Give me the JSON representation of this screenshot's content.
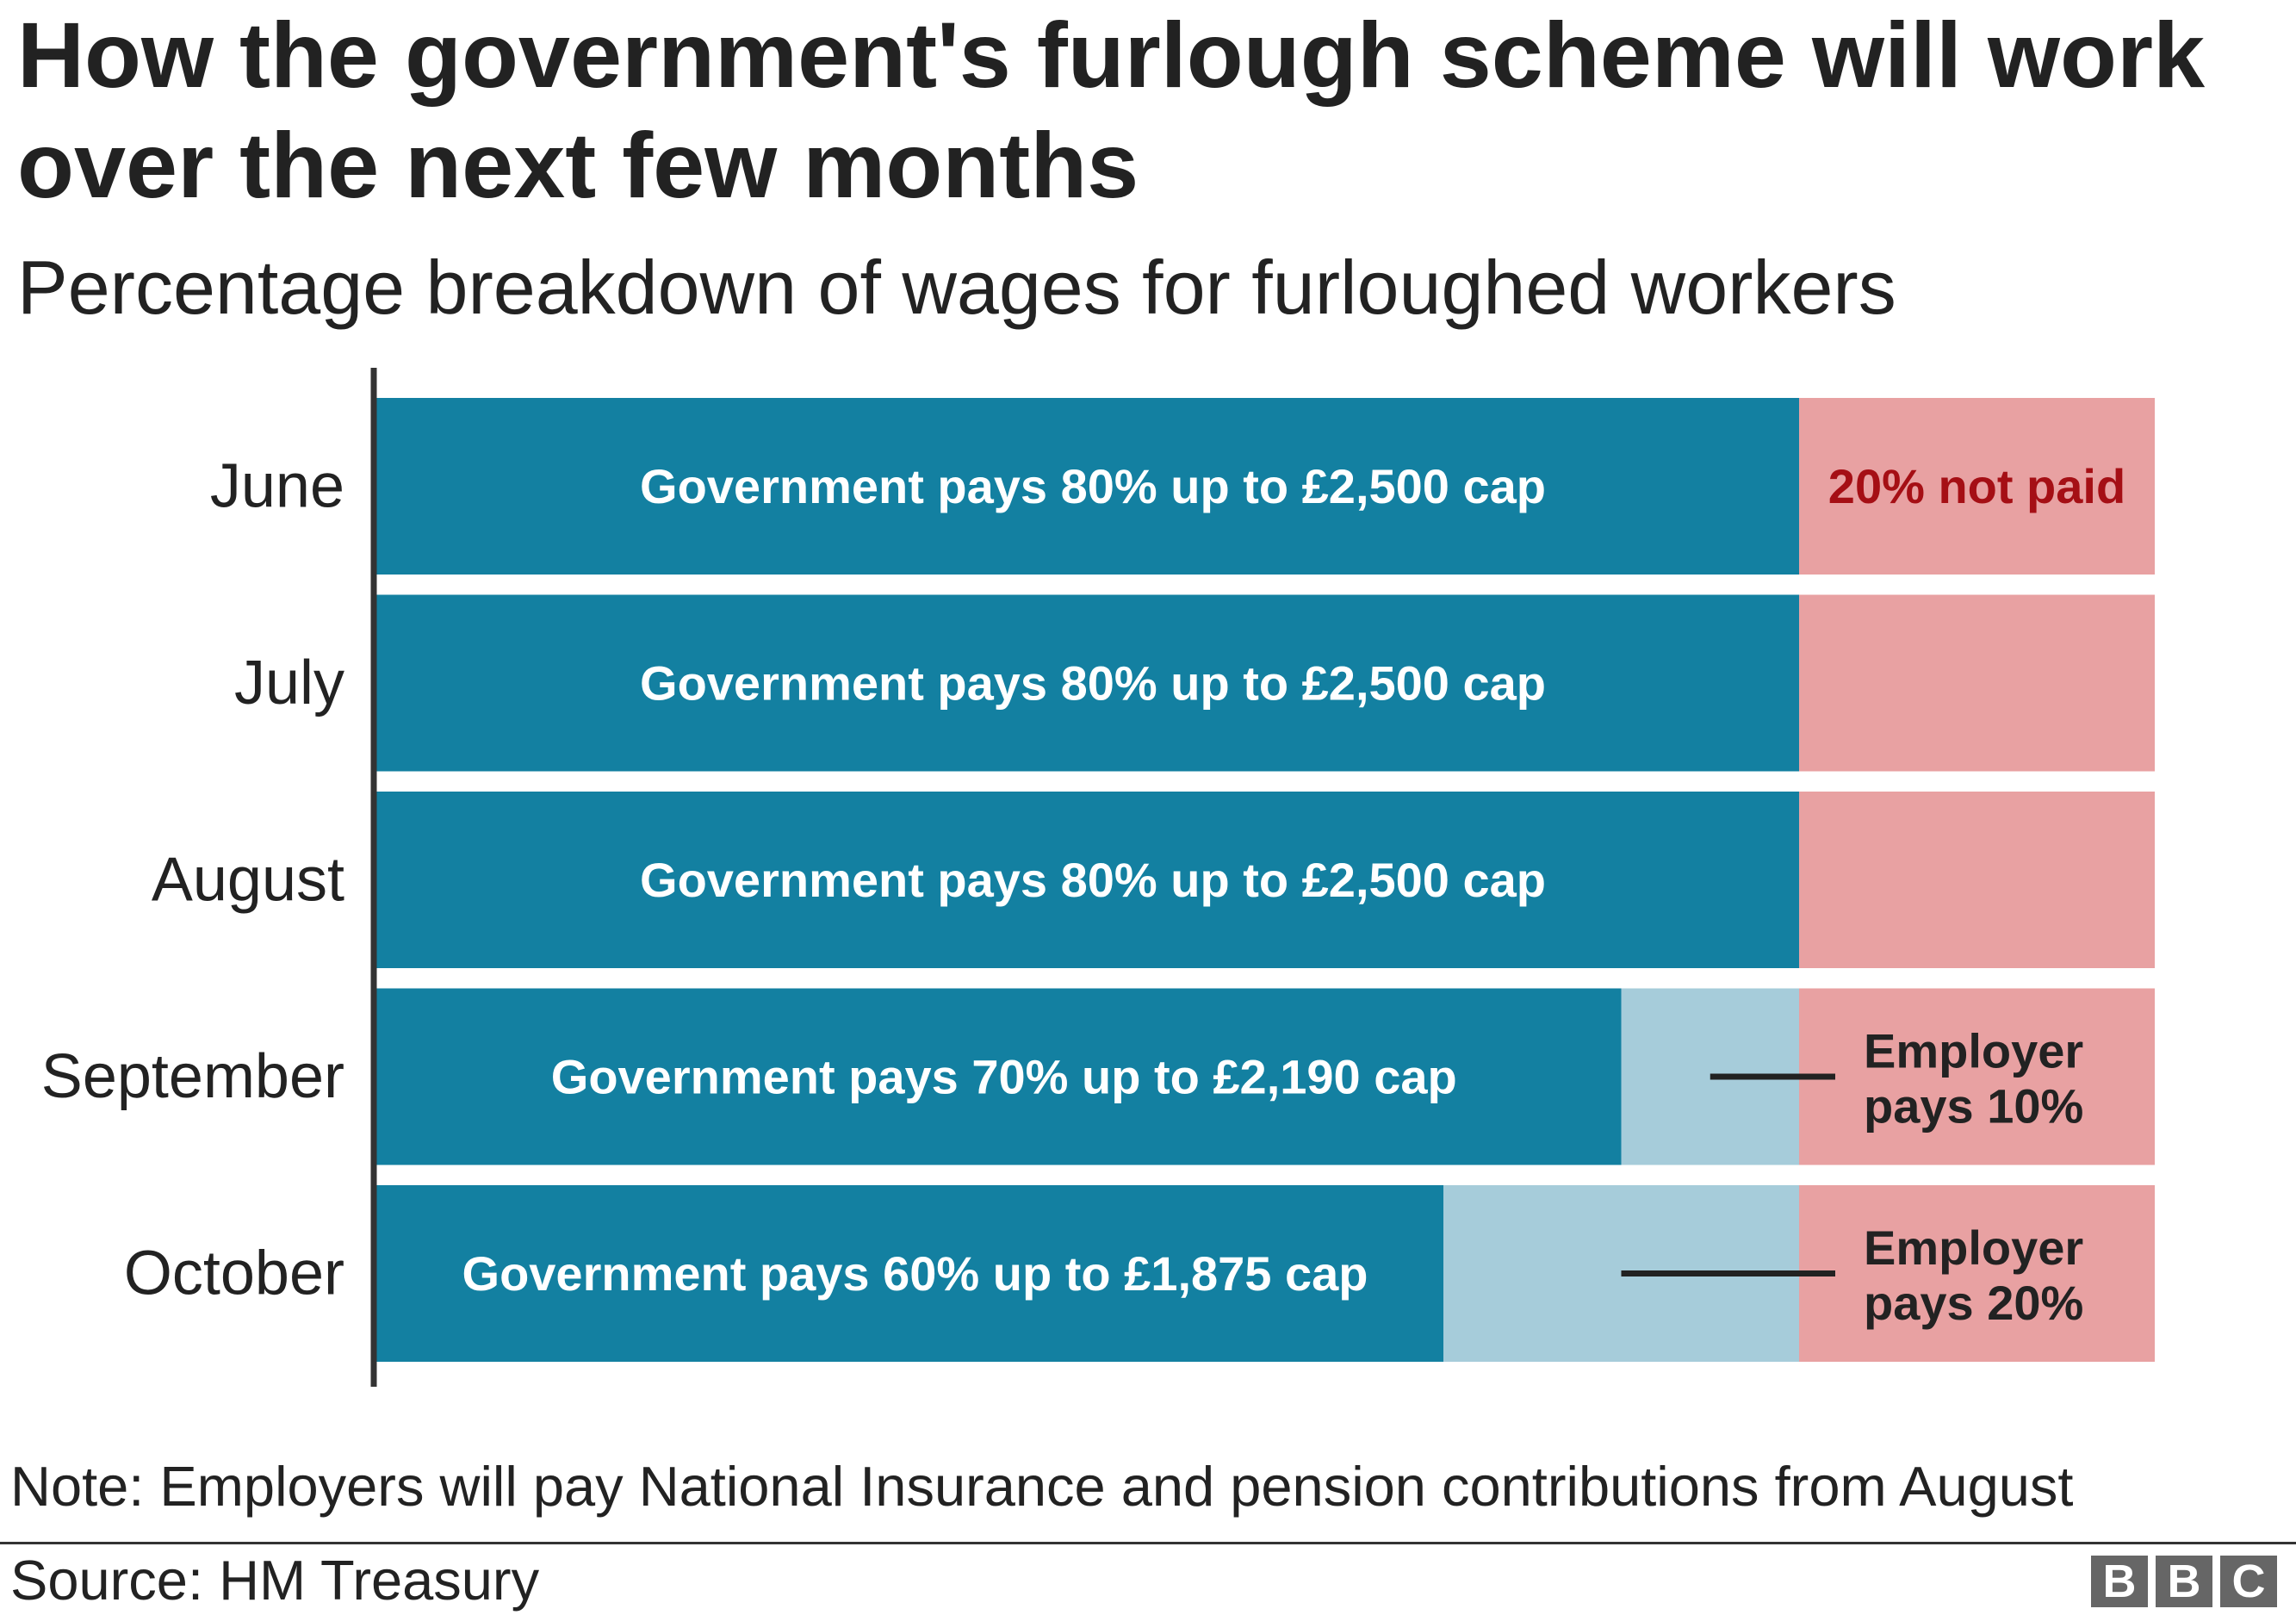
{
  "title": "How the government's furlough scheme will work over the next few months",
  "subtitle": "Percentage breakdown of wages for furloughed workers",
  "note": "Note: Employers will pay National Insurance and pension contributions from August",
  "source": "Source: HM Treasury",
  "logo": {
    "text": "BBC",
    "letters": [
      "B",
      "B",
      "C"
    ]
  },
  "colors": {
    "government": "#1380A1",
    "employer": "#A6CCDA",
    "not_paid": "#E8A1A2",
    "not_paid_text": "#A50F15",
    "axis": "#333333",
    "leader": "#222222"
  },
  "chart_data": {
    "type": "bar",
    "orientation": "horizontal",
    "stacked": true,
    "categories": [
      "June",
      "July",
      "August",
      "September",
      "October"
    ],
    "series": [
      {
        "key": "government",
        "values": [
          80,
          80,
          80,
          70,
          60
        ],
        "labels": [
          "Government pays 80% up to £2,500 cap",
          "Government pays 80% up to £2,500 cap",
          "Government pays 80% up to £2,500 cap",
          "Government pays 70% up to £2,190 cap",
          "Government pays 60% up to £1,875 cap"
        ]
      },
      {
        "key": "employer",
        "values": [
          0,
          0,
          0,
          10,
          20
        ],
        "labels": [
          "",
          "",
          "",
          "Employer pays 10%",
          "Employer pays 20%"
        ]
      },
      {
        "key": "not_paid",
        "values": [
          20,
          20,
          20,
          20,
          20
        ],
        "labels": [
          "20% not paid",
          "",
          "",
          "",
          ""
        ]
      }
    ],
    "xlim": [
      0,
      100
    ],
    "grid": false,
    "legend": "none"
  }
}
